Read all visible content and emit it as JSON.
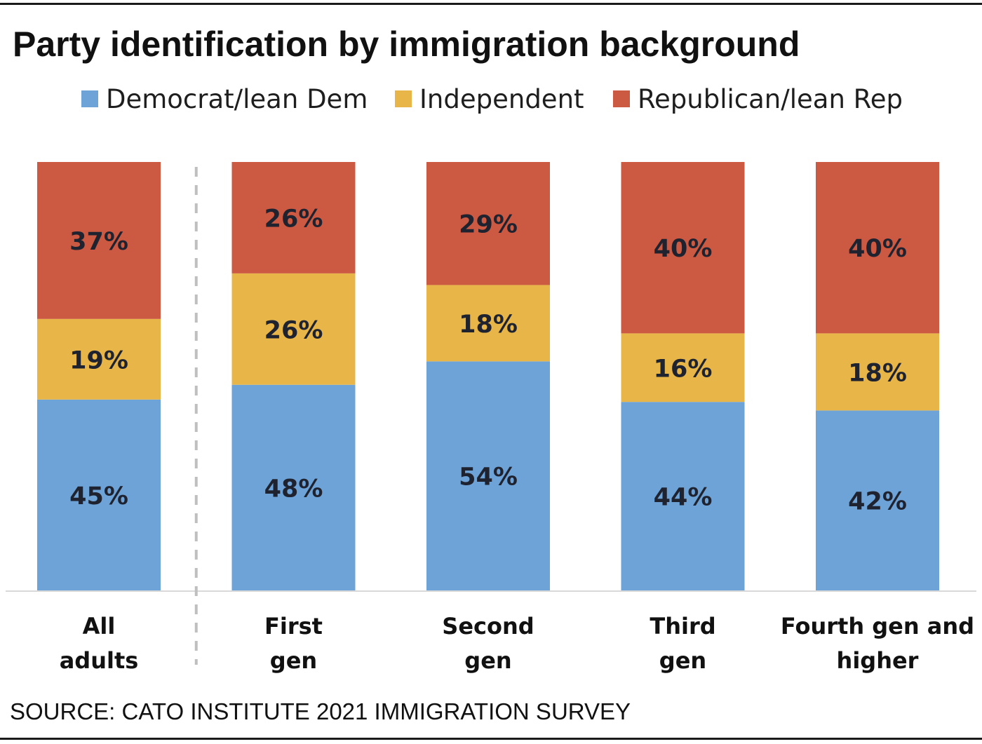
{
  "title": "Party identification by immigration background",
  "legend": {
    "items": [
      {
        "label": "Democrat/lean Dem",
        "color": "#6ea3d8"
      },
      {
        "label": "Independent",
        "color": "#e8b548"
      },
      {
        "label": "Republican/lean Rep",
        "color": "#cc5941"
      }
    ]
  },
  "chart_data": {
    "type": "bar",
    "stacked": true,
    "categories": [
      [
        "All",
        "adults"
      ],
      [
        "First",
        "gen"
      ],
      [
        "Second",
        "gen"
      ],
      [
        "Third",
        "gen"
      ],
      [
        "Fourth gen and",
        "higher"
      ]
    ],
    "series": [
      {
        "name": "Democrat/lean Dem",
        "values": [
          45,
          48,
          54,
          44,
          42
        ],
        "labels": [
          "45%",
          "48%",
          "54%",
          "44%",
          "42%"
        ],
        "color": "#6ea3d8"
      },
      {
        "name": "Independent",
        "values": [
          19,
          26,
          18,
          16,
          18
        ],
        "labels": [
          "19%",
          "26%",
          "18%",
          "16%",
          "18%"
        ],
        "color": "#e8b548"
      },
      {
        "name": "Republican/lean Rep",
        "values": [
          37,
          26,
          29,
          40,
          40
        ],
        "labels": [
          "37%",
          "26%",
          "29%",
          "40%",
          "40%"
        ],
        "color": "#cc5941"
      }
    ],
    "separator_after_category": 0,
    "title": "Party identification by immigration background",
    "xlabel": "",
    "ylabel": "",
    "grid": false,
    "legend_position": "top"
  },
  "source": "SOURCE: CATO INSTITUTE 2021 IMMIGRATION SURVEY"
}
